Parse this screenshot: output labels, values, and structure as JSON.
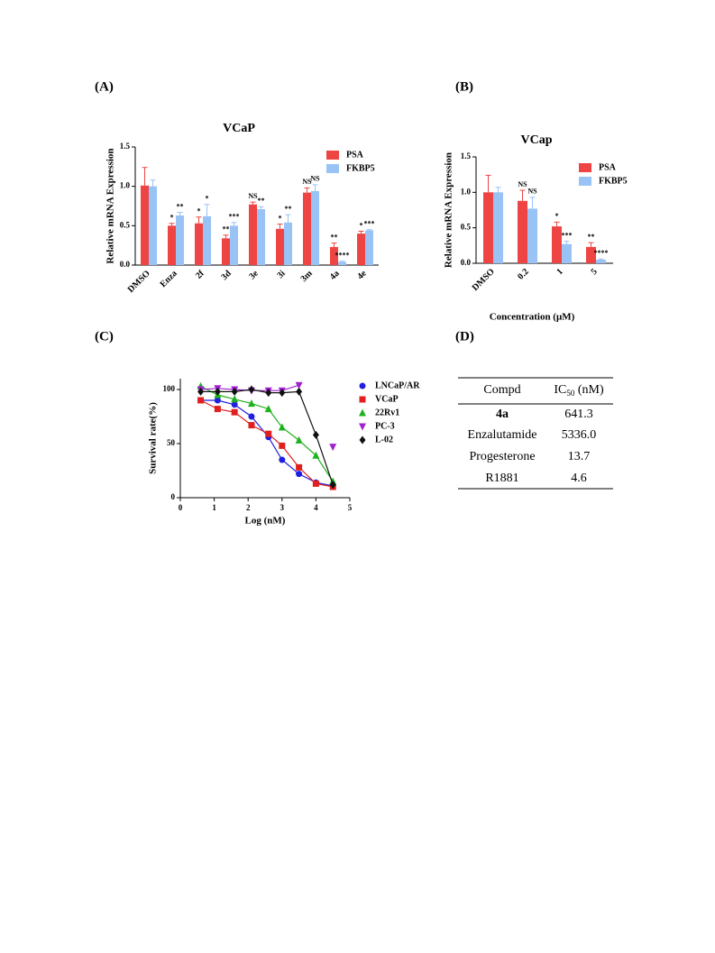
{
  "panel_labels": [
    "(A)",
    "(B)",
    "(C)",
    "(D)"
  ],
  "chart_data": [
    {
      "type": "bar",
      "title": "VCaP",
      "ylabel": "Relative mRNA Expression",
      "categories": [
        "DMSO",
        "Enza",
        "2f",
        "3d",
        "3e",
        "3i",
        "3m",
        "4a",
        "4e"
      ],
      "series": [
        {
          "name": "PSA",
          "color": "#ef4444",
          "values": [
            1.01,
            0.5,
            0.53,
            0.34,
            0.77,
            0.46,
            0.92,
            0.23,
            0.4
          ],
          "errors": [
            0.23,
            0.03,
            0.08,
            0.04,
            0.03,
            0.06,
            0.06,
            0.05,
            0.03
          ],
          "labels": [
            null,
            "*",
            "*",
            "**",
            "NS",
            "*",
            "NS",
            "**",
            "*"
          ]
        },
        {
          "name": "FKBP5",
          "color": "#99c2f5",
          "values": [
            1.0,
            0.63,
            0.62,
            0.5,
            0.71,
            0.54,
            0.94,
            0.04,
            0.44
          ],
          "errors": [
            0.08,
            0.04,
            0.15,
            0.04,
            0.03,
            0.1,
            0.08,
            0.01,
            0.01
          ],
          "labels": [
            null,
            "**",
            "*",
            "***",
            "**",
            "**",
            "NS",
            "****",
            "***"
          ]
        }
      ],
      "ylim": [
        0,
        1.5
      ],
      "yticks": [
        {
          "value": 0,
          "label": "0.0"
        },
        0.5,
        {
          "value": 1,
          "label": "1.0"
        },
        1.5
      ]
    },
    {
      "type": "bar",
      "title": "VCap",
      "ylabel": "Relative mRNA Expression",
      "xlabel": "Concentration (μM)",
      "categories": [
        "DMSO",
        "0.2",
        "1",
        "5"
      ],
      "series": [
        {
          "name": "PSA",
          "color": "#ef4444",
          "values": [
            1.0,
            0.88,
            0.52,
            0.23
          ],
          "errors": [
            0.24,
            0.15,
            0.06,
            0.06
          ],
          "labels": [
            null,
            "NS",
            "*",
            "**"
          ]
        },
        {
          "name": "FKBP5",
          "color": "#99c2f5",
          "values": [
            1.0,
            0.77,
            0.27,
            0.05
          ],
          "errors": [
            0.07,
            0.16,
            0.04,
            0.01
          ],
          "labels": [
            null,
            "NS",
            "***",
            "****"
          ]
        }
      ],
      "ylim": [
        0,
        1.5
      ],
      "yticks": [
        {
          "value": 0,
          "label": "0.0"
        },
        0.5,
        {
          "value": 1,
          "label": "1.0"
        },
        1.5
      ]
    },
    {
      "type": "line",
      "xlabel": "Log (nM)",
      "ylabel": "Survival rate(%)",
      "x": [
        0.6,
        1.1,
        1.6,
        2.1,
        2.6,
        3.0,
        3.5,
        4.0,
        4.5
      ],
      "series": [
        {
          "name": "LNCaP/AR",
          "color": "#1f1fe0",
          "marker": "circle",
          "values": [
            90,
            90,
            86,
            75,
            56,
            35,
            22,
            14,
            11
          ]
        },
        {
          "name": "VCaP",
          "color": "#e01f1f",
          "marker": "square",
          "values": [
            90,
            82,
            79,
            67,
            59,
            48,
            28,
            13,
            10
          ]
        },
        {
          "name": "22Rv1",
          "color": "#1fb01f",
          "marker": "triangle-up",
          "values": [
            103,
            95,
            91,
            87,
            82,
            65,
            53,
            39,
            15
          ]
        },
        {
          "name": "PC-3",
          "color": "#a020d0",
          "marker": "triangle-down",
          "values": [
            100,
            101,
            100,
            99,
            99,
            99,
            104,
            null,
            47
          ]
        },
        {
          "name": "L-02",
          "color": "#111111",
          "marker": "diamond",
          "values": [
            98,
            98,
            98,
            100,
            97,
            97,
            98,
            58,
            12
          ]
        }
      ],
      "xlim": [
        0,
        5
      ],
      "xticks": [
        0,
        1,
        2,
        3,
        4,
        5
      ],
      "ylim": [
        0,
        110
      ],
      "yticks": [
        0,
        50,
        100
      ]
    }
  ],
  "table": {
    "header": {
      "compd": "Compd",
      "ic": {
        "base": "IC",
        "sub": "50",
        "rest": " (nM)"
      }
    },
    "rows": [
      [
        "4a",
        "641.3"
      ],
      [
        "Enzalutamide",
        "5336.0"
      ],
      [
        "Progesterone",
        "13.7"
      ],
      [
        "R1881",
        "4.6"
      ]
    ]
  }
}
